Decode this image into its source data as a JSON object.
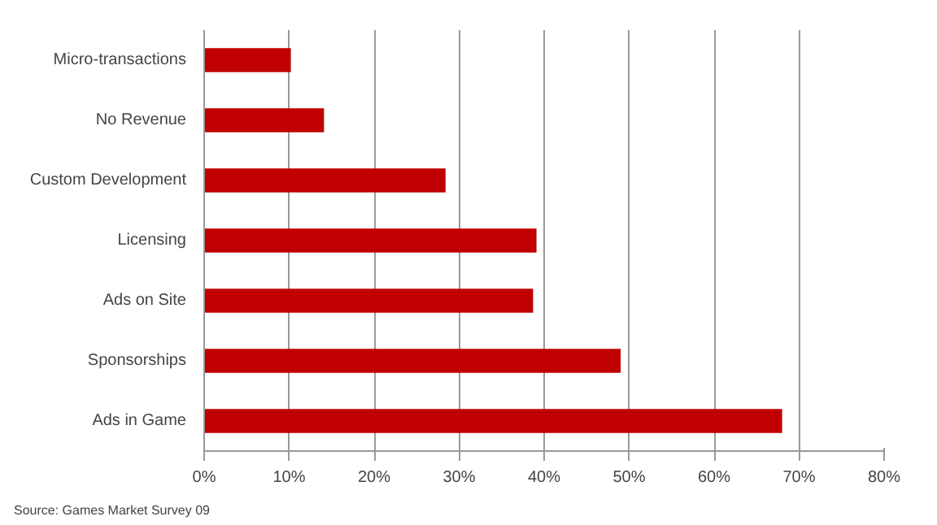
{
  "chart_data": {
    "type": "bar",
    "orientation": "horizontal",
    "categories": [
      "Micro-transactions",
      "No Revenue",
      "Custom Development",
      "Licensing",
      "Ads on Site",
      "Sponsorships",
      "Ads in Game"
    ],
    "values": [
      10.2,
      14.1,
      28.4,
      39.1,
      38.7,
      49.0,
      68.0
    ],
    "color": "#c00000",
    "xlim": [
      0,
      80
    ],
    "xticks": [
      {
        "value": 0,
        "label": "0%"
      },
      {
        "value": 10,
        "label": "10%"
      },
      {
        "value": 20,
        "label": "20%"
      },
      {
        "value": 30,
        "label": "30%"
      },
      {
        "value": 40,
        "label": "40%"
      },
      {
        "value": 50,
        "label": "50%"
      },
      {
        "value": 60,
        "label": "60%"
      },
      {
        "value": 70,
        "label": "70%"
      },
      {
        "value": 80,
        "label": "80%"
      }
    ],
    "grid": "x",
    "annotations": [
      "Source: Games Market Survey 09"
    ]
  }
}
